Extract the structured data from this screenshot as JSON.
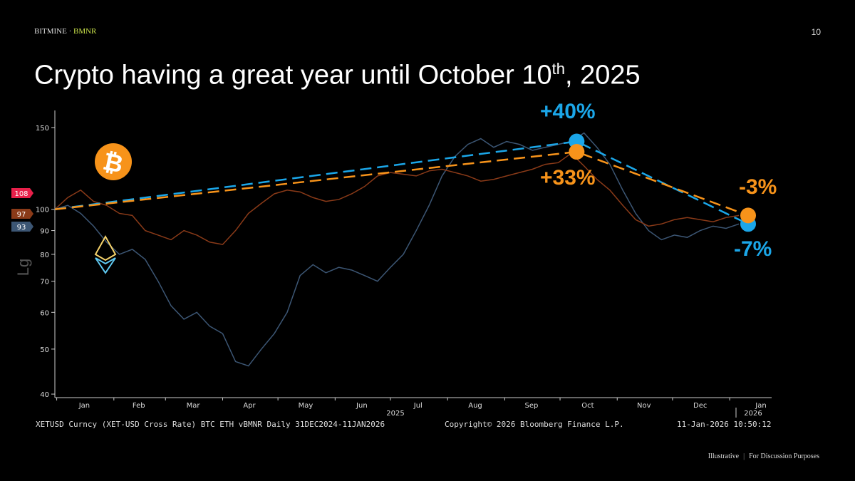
{
  "header": {
    "brand": "BITMINE",
    "separator": "·",
    "ticker": "BMNR",
    "page_number": "10"
  },
  "title": {
    "main": "Crypto having a great year until October 10",
    "sup": "th",
    "tail": ", 2025"
  },
  "chart_data": {
    "type": "line",
    "title": "Crypto having a great year until October 10th, 2025",
    "ylabel": "Lg",
    "yscale": "log",
    "ylim": [
      40,
      160
    ],
    "yticks": [
      40,
      50,
      60,
      70,
      80,
      90,
      100,
      150
    ],
    "x_start": "2024-12-31",
    "x_step_days": 7,
    "x_end_day": 376,
    "month_labels": [
      "Jan",
      "Feb",
      "Mar",
      "Apr",
      "May",
      "Jun",
      "Jul",
      "Aug",
      "Sep",
      "Oct",
      "Nov",
      "Dec",
      "Jan"
    ],
    "year_labels": [
      "2025",
      "2026"
    ],
    "series": [
      {
        "name": "BTC",
        "color": "#8a3a18",
        "last_label": "97",
        "values": [
          100,
          106,
          110,
          104,
          102,
          98,
          97,
          90,
          88,
          86,
          90,
          88,
          85,
          84,
          90,
          98,
          103,
          108,
          110,
          109,
          106,
          104,
          105,
          108,
          112,
          118,
          120,
          119,
          118,
          121,
          122,
          120,
          118,
          115,
          116,
          118,
          120,
          122,
          125,
          126,
          132,
          124,
          116,
          110,
          102,
          95,
          92,
          93,
          95,
          96,
          95,
          94,
          96,
          97
        ]
      },
      {
        "name": "ETH",
        "color": "#3c5674",
        "last_label": "93",
        "values": [
          100,
          102,
          98,
          92,
          85,
          80,
          82,
          78,
          70,
          62,
          58,
          60,
          56,
          54,
          47,
          46,
          50,
          54,
          60,
          72,
          76,
          73,
          75,
          74,
          72,
          70,
          75,
          80,
          90,
          102,
          118,
          130,
          138,
          142,
          136,
          140,
          138,
          134,
          136,
          138,
          140,
          146,
          136,
          125,
          110,
          98,
          90,
          86,
          88,
          87,
          90,
          92,
          91,
          93
        ]
      }
    ],
    "extra_label": {
      "text": "108",
      "color": "#e8204a"
    },
    "trendlines": [
      {
        "name": "ETH trend",
        "color": "#1ba6e8",
        "points": [
          [
            0,
            100
          ],
          [
            283,
            140
          ],
          [
            376,
            93
          ]
        ],
        "labels": [
          "+40%",
          "-7%"
        ]
      },
      {
        "name": "BTC trend",
        "color": "#f7931a",
        "points": [
          [
            0,
            100
          ],
          [
            283,
            133
          ],
          [
            376,
            97
          ]
        ],
        "labels": [
          "+33%",
          "-3%"
        ]
      }
    ]
  },
  "footer": {
    "source": "XETUSD Curncy (XET-USD Cross Rate) BTC ETH vBMNR Daily 31DEC2024-11JAN2026",
    "copyright": "Copyright© 2026 Bloomberg Finance L.P.",
    "timestamp": "11-Jan-2026 10:50:12"
  },
  "disclaimer": {
    "left": "Illustrative",
    "right": "For Discussion Purposes"
  }
}
